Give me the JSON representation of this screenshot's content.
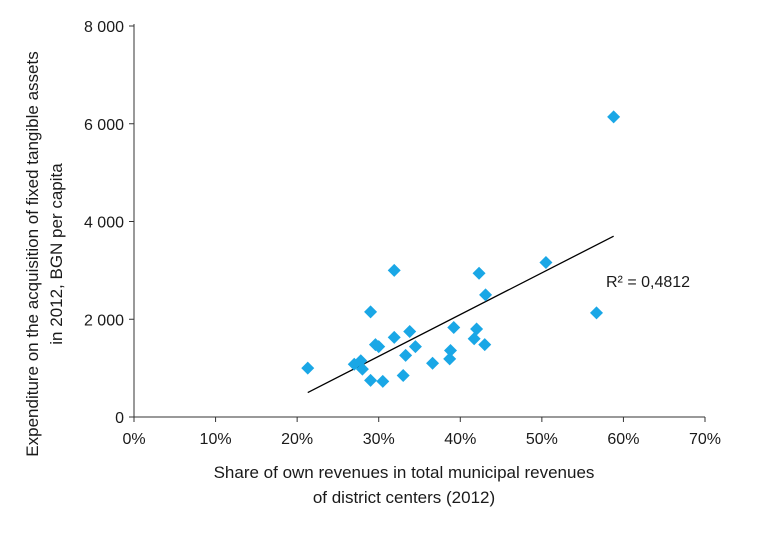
{
  "chart_data": {
    "type": "scatter",
    "xlabel_lines": [
      "Share of own revenues in total municipal revenues",
      "of district centers (2012)"
    ],
    "ylabel_lines": [
      "Expenditure on the acquisition of fixed tangible assets",
      "in 2012, BGN per capita"
    ],
    "xlim": [
      0,
      0.7
    ],
    "ylim": [
      0,
      8000
    ],
    "x_ticks": [
      0,
      0.1,
      0.2,
      0.3,
      0.4,
      0.5,
      0.6,
      0.7
    ],
    "x_tick_labels": [
      "0%",
      "10%",
      "20%",
      "30%",
      "40%",
      "50%",
      "60%",
      "70%"
    ],
    "y_ticks": [
      0,
      2000,
      4000,
      6000,
      8000
    ],
    "y_tick_labels": [
      "0",
      "2 000",
      "4 000",
      "6 000",
      "8 000"
    ],
    "marker_color": "#1aa7e6",
    "trendline": {
      "type": "linear",
      "x_range": [
        0.213,
        0.588
      ],
      "y_range": [
        500,
        3700
      ],
      "color": "#000000"
    },
    "r_squared_label": "R² = 0,4812",
    "points": [
      {
        "x": 0.213,
        "y": 1000
      },
      {
        "x": 0.27,
        "y": 1080
      },
      {
        "x": 0.278,
        "y": 1150
      },
      {
        "x": 0.28,
        "y": 980
      },
      {
        "x": 0.29,
        "y": 2150
      },
      {
        "x": 0.29,
        "y": 750
      },
      {
        "x": 0.296,
        "y": 1480
      },
      {
        "x": 0.3,
        "y": 1440
      },
      {
        "x": 0.305,
        "y": 730
      },
      {
        "x": 0.319,
        "y": 3000
      },
      {
        "x": 0.319,
        "y": 1630
      },
      {
        "x": 0.33,
        "y": 850
      },
      {
        "x": 0.333,
        "y": 1260
      },
      {
        "x": 0.338,
        "y": 1750
      },
      {
        "x": 0.345,
        "y": 1440
      },
      {
        "x": 0.366,
        "y": 1100
      },
      {
        "x": 0.387,
        "y": 1190
      },
      {
        "x": 0.388,
        "y": 1360
      },
      {
        "x": 0.392,
        "y": 1830
      },
      {
        "x": 0.417,
        "y": 1600
      },
      {
        "x": 0.42,
        "y": 1800
      },
      {
        "x": 0.423,
        "y": 2940
      },
      {
        "x": 0.43,
        "y": 1480
      },
      {
        "x": 0.431,
        "y": 2500
      },
      {
        "x": 0.505,
        "y": 3160
      },
      {
        "x": 0.567,
        "y": 2130
      },
      {
        "x": 0.588,
        "y": 6140
      }
    ]
  }
}
